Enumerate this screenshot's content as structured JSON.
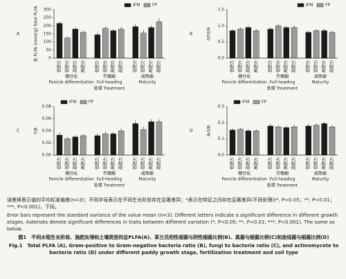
{
  "chart_data": [
    {
      "type": "bar",
      "panel": "A",
      "ylabel": "总 PLFA (nmol/g) Total PLFA",
      "xlabel": "处理 Treatment",
      "group_labels_zh": [
        "穗分化",
        "齐穗期",
        "成熟期"
      ],
      "group_labels_en": [
        "Panicle differentiation",
        "Full-heading",
        "Maturity"
      ],
      "categories": [
        "低肥力",
        "低肥力",
        "高肥力",
        "高肥力",
        "低肥力",
        "低肥力",
        "高肥力",
        "高肥力",
        "低肥力",
        "低肥力",
        "高肥力",
        "高肥力"
      ],
      "series": [
        {
          "name": "IFM",
          "color": "#1a1a1a",
          "values": [
            215,
            null,
            180,
            null,
            145,
            null,
            170,
            null,
            195,
            null,
            190,
            null
          ],
          "errors": [
            12,
            null,
            10,
            null,
            12,
            null,
            10,
            null,
            15,
            null,
            12,
            null
          ]
        },
        {
          "name": "FP",
          "color": "#9a9a9a",
          "values": [
            null,
            125,
            null,
            160,
            null,
            185,
            null,
            180,
            null,
            155,
            null,
            225
          ],
          "errors": [
            null,
            8,
            null,
            10,
            null,
            12,
            null,
            15,
            null,
            20,
            null,
            20
          ]
        }
      ],
      "ylim": [
        0,
        300
      ],
      "yticks": [
        0,
        50,
        100,
        150,
        200,
        250,
        300
      ],
      "legend": "upper right"
    },
    {
      "type": "bar",
      "panel": "B",
      "ylabel": "GP/GN",
      "xlabel": "处理 Treatment",
      "group_labels_zh": [
        "穗分化",
        "齐穗期",
        "成熟期"
      ],
      "group_labels_en": [
        "Panicle differentiation",
        "Full-heading",
        "Maturity"
      ],
      "categories": [
        "低肥力",
        "低肥力",
        "高肥力",
        "高肥力",
        "低肥力",
        "低肥力",
        "高肥力",
        "高肥力",
        "低肥力",
        "低肥力",
        "高肥力",
        "高肥力"
      ],
      "series": [
        {
          "name": "IFM",
          "color": "#1a1a1a",
          "values": [
            0.85,
            null,
            0.95,
            null,
            0.9,
            null,
            0.95,
            null,
            0.8,
            null,
            0.85,
            null
          ],
          "errors": [
            0.05,
            null,
            0.05,
            null,
            0.06,
            null,
            0.05,
            null,
            0.05,
            null,
            0.06,
            null
          ]
        },
        {
          "name": "FP",
          "color": "#9a9a9a",
          "values": [
            null,
            0.9,
            null,
            0.85,
            null,
            1.0,
            null,
            0.95,
            null,
            0.85,
            null,
            0.8
          ],
          "errors": [
            null,
            0.05,
            null,
            0.05,
            null,
            0.06,
            null,
            0.06,
            null,
            0.05,
            null,
            0.05
          ]
        }
      ],
      "ylim": [
        0,
        1.5
      ],
      "yticks": [
        {
          "value": 0,
          "label": "0.0"
        },
        0.5,
        {
          "value": 1,
          "label": "1.0"
        },
        1.5
      ],
      "legend": "upper right"
    },
    {
      "type": "bar",
      "panel": "C",
      "ylabel": "F/B",
      "xlabel": "处理 Treatment",
      "group_labels_zh": [
        "穗分化",
        "齐穗期",
        "成熟期"
      ],
      "group_labels_en": [
        "Panicle differentiation",
        "Full-heading",
        "Maturity"
      ],
      "categories": [
        "低肥力",
        "低肥力",
        "高肥力",
        "高肥力",
        "低肥力",
        "低肥力",
        "高肥力",
        "高肥力",
        "低肥力",
        "低肥力",
        "高肥力",
        "高肥力"
      ],
      "series": [
        {
          "name": "IFM",
          "color": "#1a1a1a",
          "values": [
            0.033,
            null,
            0.03,
            null,
            0.032,
            null,
            0.035,
            null,
            0.052,
            null,
            0.055,
            null
          ],
          "errors": [
            0.004,
            null,
            0.003,
            null,
            0.004,
            null,
            0.003,
            null,
            0.005,
            null,
            0.004,
            null
          ]
        },
        {
          "name": "FP",
          "color": "#9a9a9a",
          "values": [
            null,
            0.027,
            null,
            0.032,
            null,
            0.035,
            null,
            0.04,
            null,
            0.042,
            null,
            0.055
          ],
          "errors": [
            null,
            0.003,
            null,
            0.003,
            null,
            0.004,
            null,
            0.004,
            null,
            0.005,
            null,
            0.004
          ]
        }
      ],
      "ylim": [
        0,
        0.08
      ],
      "yticks": [
        {
          "value": 0,
          "label": "0.00"
        },
        0.02,
        0.04,
        0.06,
        0.08
      ],
      "legend": "upper left"
    },
    {
      "type": "bar",
      "panel": "D",
      "ylabel": "Act/B",
      "xlabel": "处理 Treatment",
      "group_labels_zh": [
        "穗分化",
        "齐穗期",
        "成熟期"
      ],
      "group_labels_en": [
        "Panicle differentiation",
        "Full-heading",
        "Maturity"
      ],
      "categories": [
        "低肥力",
        "低肥力",
        "高肥力",
        "高肥力",
        "低肥力",
        "低肥力",
        "高肥力",
        "高肥力",
        "低肥力",
        "低肥力",
        "高肥力",
        "高肥力"
      ],
      "series": [
        {
          "name": "IFM",
          "color": "#1a1a1a",
          "values": [
            0.155,
            null,
            0.15,
            null,
            0.18,
            null,
            0.17,
            null,
            0.18,
            null,
            0.195,
            null
          ],
          "errors": [
            0.01,
            null,
            0.01,
            null,
            0.012,
            null,
            0.01,
            null,
            0.01,
            null,
            0.01,
            null
          ]
        },
        {
          "name": "FP",
          "color": "#9a9a9a",
          "values": [
            null,
            0.16,
            null,
            0.15,
            null,
            0.175,
            null,
            0.175,
            null,
            0.185,
            null,
            0.175
          ],
          "errors": [
            null,
            0.01,
            null,
            0.01,
            null,
            0.01,
            null,
            0.012,
            null,
            0.01,
            null,
            0.01
          ]
        }
      ],
      "ylim": [
        0,
        0.3
      ],
      "yticks": [
        {
          "value": 0,
          "label": "0.0"
        },
        0.1,
        0.2,
        0.3
      ],
      "legend": "upper left"
    }
  ],
  "caption": {
    "note_zh": "误差棒表示值的平均标准偏差(n=3)；不同字母表示在不同生长阶段存在显著差异；*表示在特征之间存在显著差异(不同处理)(*, P<0.05；**, P<0.01；***, P<0.001)，下同。",
    "note_en": "Error bars represent the standard variance of the value mean (n=3). Different letters indicate a significant difference in different growth stages. Asterisks denote significant differences in traits between different variation (*, P<0.05; **, P<0.01; ***, P<0.001). The same as below.",
    "title_zh": "图1　不同水稻生长阶段、施肥处理和土壤类型的总PLFA(A)、革兰氏阳性细菌与阴性细菌比例(B)、真菌与细菌比例(C)和放线菌与细菌比例(D)",
    "title_en": "Fig.1　Total PLFA (A), Gram-positive to Gram-negative bacteria ratio (B), fungi to bacteria ratio (C), and actinomycete to bacteria ratio (D) under different paddy growth stage, fertilization treatment and soil type"
  }
}
